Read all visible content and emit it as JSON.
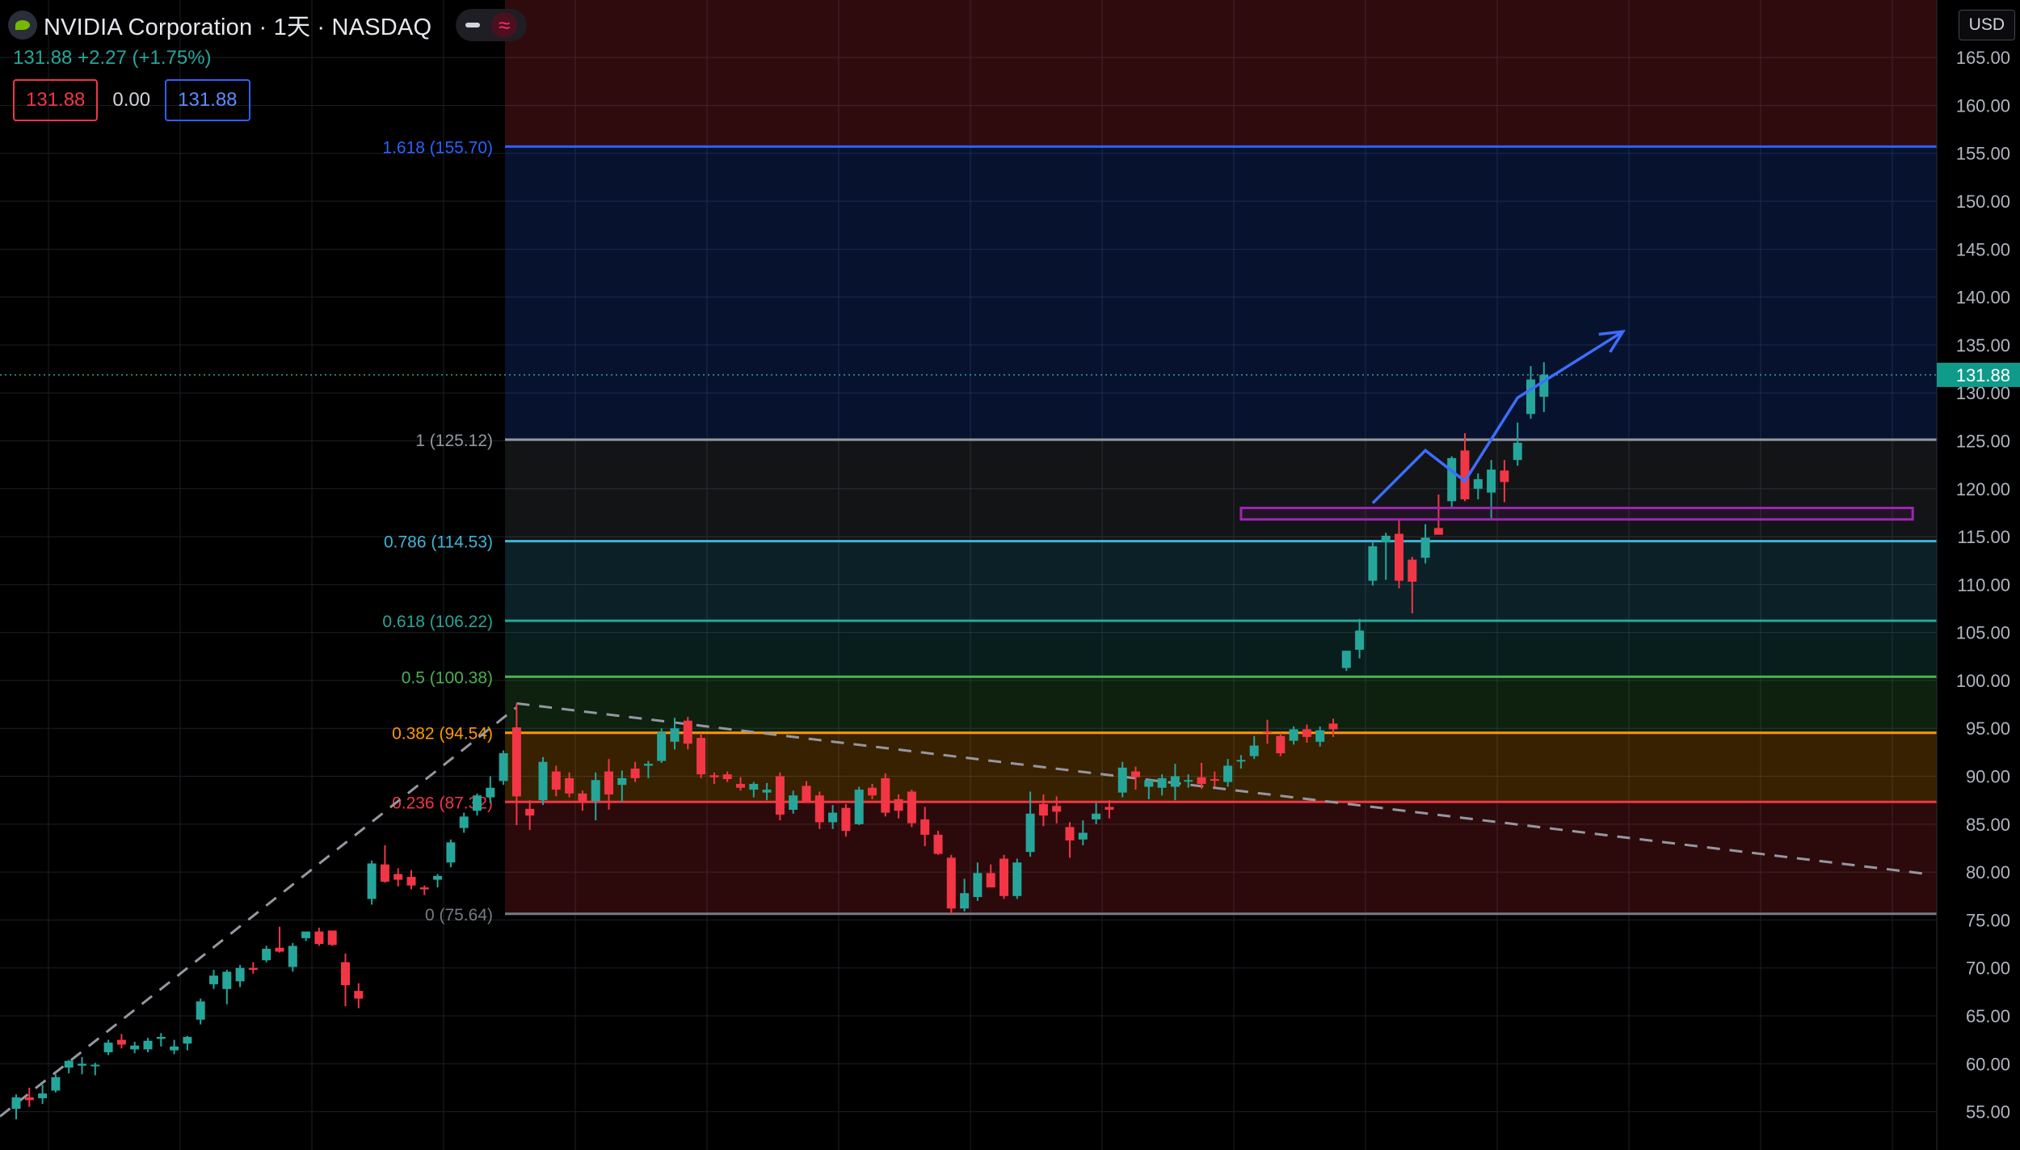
{
  "header": {
    "title": "NVIDIA Corporation · 1天 · NASDAQ",
    "change": "131.88  +2.27 (+1.75%)",
    "bid": "131.88",
    "spread": "0.00",
    "ask": "131.88",
    "currency": "USD"
  },
  "colors": {
    "up": "#26a69a",
    "down": "#f23645",
    "fib_1618": "#2962ff",
    "fib_1": "#9598a1",
    "fib_0786": "#3fb5d6",
    "fib_0618": "#26a69a",
    "fib_05": "#4caf50",
    "fib_0382": "#ff9800",
    "fib_0236": "#f23645",
    "fib_0": "#787b86",
    "rect": "#9c27b0",
    "arrow": "#3d6eff",
    "trend": "#9598a1"
  },
  "chart_data": {
    "type": "candlestick",
    "symbol": "NVDA",
    "interval": "1天",
    "ylim": [
      51,
      171
    ],
    "price_axis_ticks": [
      55,
      60,
      65,
      70,
      75,
      80,
      85,
      90,
      95,
      100,
      105,
      110,
      115,
      120,
      125,
      130,
      135,
      140,
      145,
      150,
      155,
      160,
      165
    ],
    "last_price": 131.88,
    "fib_levels": [
      {
        "ratio": "1.618",
        "price": 155.7,
        "label": "1.618 (155.70)",
        "color": "#2962ff"
      },
      {
        "ratio": "1",
        "price": 125.12,
        "label": "1 (125.12)",
        "color": "#9598a1"
      },
      {
        "ratio": "0.786",
        "price": 114.53,
        "label": "0.786 (114.53)",
        "color": "#3fb5d6"
      },
      {
        "ratio": "0.618",
        "price": 106.22,
        "label": "0.618 (106.22)",
        "color": "#26a69a"
      },
      {
        "ratio": "0.5",
        "price": 100.38,
        "label": "0.5 (100.38)",
        "color": "#4caf50"
      },
      {
        "ratio": "0.382",
        "price": 94.54,
        "label": "0.382 (94.54)",
        "color": "#ff9800"
      },
      {
        "ratio": "0.236",
        "price": 87.32,
        "label": "0.236 (87.32)",
        "color": "#f23645"
      },
      {
        "ratio": "0",
        "price": 75.64,
        "label": "0 (75.64)",
        "color": "#787b86"
      }
    ],
    "support_zone": {
      "low": 116.8,
      "high": 118.0,
      "from_bar": 93,
      "to_bar": 144
    },
    "projection_path": [
      {
        "bar": 103,
        "price": 118.5
      },
      {
        "bar": 107,
        "price": 124.0
      },
      {
        "bar": 110,
        "price": 120.8
      },
      {
        "bar": 114,
        "price": 129.5
      },
      {
        "bar": 122,
        "price": 136.4
      }
    ],
    "candles": [
      {
        "o": 55.3,
        "h": 56.8,
        "l": 54.2,
        "c": 56.5
      },
      {
        "o": 56.5,
        "h": 57.5,
        "l": 55.5,
        "c": 56.2
      },
      {
        "o": 56.4,
        "h": 57.8,
        "l": 55.8,
        "c": 56.9
      },
      {
        "o": 57.2,
        "h": 58.9,
        "l": 57.0,
        "c": 58.6
      },
      {
        "o": 59.6,
        "h": 60.4,
        "l": 59.0,
        "c": 60.3
      },
      {
        "o": 59.8,
        "h": 60.7,
        "l": 58.9,
        "c": 60.0
      },
      {
        "o": 59.8,
        "h": 60.1,
        "l": 58.8,
        "c": 59.9
      },
      {
        "o": 61.2,
        "h": 62.5,
        "l": 60.9,
        "c": 62.2
      },
      {
        "o": 62.5,
        "h": 63.1,
        "l": 61.6,
        "c": 62.0
      },
      {
        "o": 61.5,
        "h": 62.3,
        "l": 61.1,
        "c": 61.9
      },
      {
        "o": 61.5,
        "h": 62.7,
        "l": 61.2,
        "c": 62.4
      },
      {
        "o": 62.6,
        "h": 63.2,
        "l": 61.8,
        "c": 62.8
      },
      {
        "o": 61.4,
        "h": 62.5,
        "l": 61.0,
        "c": 61.8
      },
      {
        "o": 62.1,
        "h": 62.9,
        "l": 61.4,
        "c": 62.8
      },
      {
        "o": 64.6,
        "h": 66.8,
        "l": 64.1,
        "c": 66.5
      },
      {
        "o": 68.3,
        "h": 69.8,
        "l": 67.8,
        "c": 69.2
      },
      {
        "o": 67.8,
        "h": 69.8,
        "l": 66.2,
        "c": 69.6
      },
      {
        "o": 68.6,
        "h": 70.3,
        "l": 68.0,
        "c": 70.0
      },
      {
        "o": 70.0,
        "h": 70.6,
        "l": 69.4,
        "c": 69.8
      },
      {
        "o": 70.8,
        "h": 72.3,
        "l": 70.6,
        "c": 72.0
      },
      {
        "o": 72.1,
        "h": 74.3,
        "l": 71.6,
        "c": 71.7
      },
      {
        "o": 70.1,
        "h": 72.6,
        "l": 69.6,
        "c": 72.3
      },
      {
        "o": 73.1,
        "h": 73.6,
        "l": 72.8,
        "c": 73.8
      },
      {
        "o": 73.8,
        "h": 74.2,
        "l": 72.3,
        "c": 72.5
      },
      {
        "o": 73.9,
        "h": 73.9,
        "l": 72.3,
        "c": 72.4
      },
      {
        "o": 70.6,
        "h": 71.5,
        "l": 66.0,
        "c": 68.2
      },
      {
        "o": 67.6,
        "h": 68.4,
        "l": 65.8,
        "c": 66.8
      },
      {
        "o": 77.2,
        "h": 81.2,
        "l": 76.6,
        "c": 80.9
      },
      {
        "o": 80.8,
        "h": 82.8,
        "l": 78.9,
        "c": 79.0
      },
      {
        "o": 79.8,
        "h": 80.4,
        "l": 78.5,
        "c": 79.2
      },
      {
        "o": 79.5,
        "h": 80.2,
        "l": 78.2,
        "c": 78.6
      },
      {
        "o": 78.4,
        "h": 78.6,
        "l": 77.6,
        "c": 78.2
      },
      {
        "o": 79.2,
        "h": 79.8,
        "l": 78.4,
        "c": 79.6
      },
      {
        "o": 81.0,
        "h": 83.4,
        "l": 80.5,
        "c": 83.1
      },
      {
        "o": 84.6,
        "h": 86.2,
        "l": 84.1,
        "c": 85.8
      },
      {
        "o": 86.4,
        "h": 88.2,
        "l": 85.9,
        "c": 88.0
      },
      {
        "o": 87.8,
        "h": 90.0,
        "l": 87.2,
        "c": 88.8
      },
      {
        "o": 89.5,
        "h": 92.7,
        "l": 89.1,
        "c": 92.4
      },
      {
        "o": 95.1,
        "h": 97.6,
        "l": 84.9,
        "c": 87.9
      },
      {
        "o": 86.6,
        "h": 87.5,
        "l": 84.4,
        "c": 85.9
      },
      {
        "o": 87.5,
        "h": 92.0,
        "l": 87.0,
        "c": 91.5
      },
      {
        "o": 90.5,
        "h": 91.1,
        "l": 87.9,
        "c": 88.6
      },
      {
        "o": 89.8,
        "h": 90.4,
        "l": 87.8,
        "c": 88.2
      },
      {
        "o": 88.2,
        "h": 88.5,
        "l": 86.4,
        "c": 87.4
      },
      {
        "o": 87.4,
        "h": 90.4,
        "l": 85.4,
        "c": 89.6
      },
      {
        "o": 90.5,
        "h": 91.8,
        "l": 86.5,
        "c": 88.1
      },
      {
        "o": 89.1,
        "h": 90.6,
        "l": 87.3,
        "c": 89.8
      },
      {
        "o": 90.8,
        "h": 91.5,
        "l": 89.4,
        "c": 89.8
      },
      {
        "o": 91.1,
        "h": 91.6,
        "l": 89.8,
        "c": 91.3
      },
      {
        "o": 91.6,
        "h": 95.0,
        "l": 91.4,
        "c": 94.6
      },
      {
        "o": 93.6,
        "h": 96.1,
        "l": 92.8,
        "c": 95.0
      },
      {
        "o": 95.8,
        "h": 96.2,
        "l": 92.8,
        "c": 93.4
      },
      {
        "o": 94.0,
        "h": 94.5,
        "l": 89.8,
        "c": 90.2
      },
      {
        "o": 90.1,
        "h": 90.4,
        "l": 89.2,
        "c": 89.9
      },
      {
        "o": 90.2,
        "h": 90.5,
        "l": 89.4,
        "c": 89.7
      },
      {
        "o": 89.2,
        "h": 89.9,
        "l": 88.5,
        "c": 88.8
      },
      {
        "o": 88.6,
        "h": 89.4,
        "l": 87.8,
        "c": 89.2
      },
      {
        "o": 88.3,
        "h": 89.3,
        "l": 87.5,
        "c": 88.6
      },
      {
        "o": 90.0,
        "h": 90.4,
        "l": 85.4,
        "c": 86.0
      },
      {
        "o": 86.5,
        "h": 88.5,
        "l": 86.1,
        "c": 88.0
      },
      {
        "o": 89.0,
        "h": 89.5,
        "l": 87.4,
        "c": 87.4
      },
      {
        "o": 88.0,
        "h": 88.4,
        "l": 84.5,
        "c": 85.2
      },
      {
        "o": 85.2,
        "h": 87.0,
        "l": 84.5,
        "c": 86.2
      },
      {
        "o": 86.7,
        "h": 87.1,
        "l": 83.7,
        "c": 84.3
      },
      {
        "o": 85.0,
        "h": 88.9,
        "l": 84.9,
        "c": 88.6
      },
      {
        "o": 88.8,
        "h": 89.2,
        "l": 87.6,
        "c": 88.0
      },
      {
        "o": 89.8,
        "h": 90.3,
        "l": 85.8,
        "c": 86.2
      },
      {
        "o": 87.6,
        "h": 88.1,
        "l": 85.6,
        "c": 86.4
      },
      {
        "o": 88.4,
        "h": 88.6,
        "l": 84.7,
        "c": 85.1
      },
      {
        "o": 85.5,
        "h": 86.8,
        "l": 82.7,
        "c": 83.9
      },
      {
        "o": 83.9,
        "h": 84.3,
        "l": 81.8,
        "c": 81.9
      },
      {
        "o": 81.5,
        "h": 81.8,
        "l": 75.6,
        "c": 76.2
      },
      {
        "o": 76.2,
        "h": 79.3,
        "l": 75.9,
        "c": 77.8
      },
      {
        "o": 77.4,
        "h": 81.0,
        "l": 77.0,
        "c": 79.9
      },
      {
        "o": 79.9,
        "h": 80.8,
        "l": 79.0,
        "c": 78.4
      },
      {
        "o": 81.4,
        "h": 81.8,
        "l": 77.2,
        "c": 77.5
      },
      {
        "o": 77.5,
        "h": 81.4,
        "l": 77.2,
        "c": 81.0
      },
      {
        "o": 82.1,
        "h": 88.4,
        "l": 81.6,
        "c": 86.1
      },
      {
        "o": 87.1,
        "h": 88.1,
        "l": 84.8,
        "c": 85.9
      },
      {
        "o": 86.9,
        "h": 87.9,
        "l": 85.1,
        "c": 86.3
      },
      {
        "o": 84.7,
        "h": 85.2,
        "l": 81.5,
        "c": 83.3
      },
      {
        "o": 83.4,
        "h": 85.4,
        "l": 82.8,
        "c": 84.1
      },
      {
        "o": 85.5,
        "h": 87.2,
        "l": 85.0,
        "c": 86.1
      },
      {
        "o": 86.8,
        "h": 87.5,
        "l": 85.6,
        "c": 86.5
      },
      {
        "o": 88.3,
        "h": 91.5,
        "l": 87.8,
        "c": 90.9
      },
      {
        "o": 90.5,
        "h": 91.0,
        "l": 88.6,
        "c": 89.9
      },
      {
        "o": 88.9,
        "h": 89.6,
        "l": 87.6,
        "c": 89.6
      },
      {
        "o": 88.8,
        "h": 90.2,
        "l": 88.0,
        "c": 89.8
      },
      {
        "o": 88.9,
        "h": 91.3,
        "l": 87.5,
        "c": 90.0
      },
      {
        "o": 89.5,
        "h": 90.2,
        "l": 88.8,
        "c": 89.6
      },
      {
        "o": 89.9,
        "h": 91.4,
        "l": 88.7,
        "c": 89.2
      },
      {
        "o": 89.7,
        "h": 90.5,
        "l": 88.9,
        "c": 89.6
      },
      {
        "o": 89.4,
        "h": 91.8,
        "l": 88.9,
        "c": 91.1
      },
      {
        "o": 91.6,
        "h": 92.2,
        "l": 90.8,
        "c": 91.7
      },
      {
        "o": 92.1,
        "h": 94.2,
        "l": 91.8,
        "c": 93.2
      },
      {
        "o": 94.7,
        "h": 95.9,
        "l": 93.4,
        "c": 94.6
      },
      {
        "o": 94.2,
        "h": 94.5,
        "l": 92.1,
        "c": 92.4
      },
      {
        "o": 93.7,
        "h": 95.2,
        "l": 93.3,
        "c": 94.9
      },
      {
        "o": 94.9,
        "h": 95.4,
        "l": 93.5,
        "c": 94.1
      },
      {
        "o": 93.6,
        "h": 95.2,
        "l": 93.1,
        "c": 94.8
      },
      {
        "o": 95.5,
        "h": 96.0,
        "l": 94.1,
        "c": 94.9
      },
      {
        "o": 101.3,
        "h": 102.9,
        "l": 101.0,
        "c": 103.1
      },
      {
        "o": 103.2,
        "h": 106.4,
        "l": 102.3,
        "c": 105.2
      },
      {
        "o": 110.4,
        "h": 114.4,
        "l": 109.9,
        "c": 114.0
      },
      {
        "o": 114.4,
        "h": 115.4,
        "l": 110.5,
        "c": 115.1
      },
      {
        "o": 115.3,
        "h": 116.8,
        "l": 109.6,
        "c": 110.4
      },
      {
        "o": 112.6,
        "h": 112.9,
        "l": 107.0,
        "c": 110.3
      },
      {
        "o": 112.8,
        "h": 116.3,
        "l": 112.2,
        "c": 114.9
      },
      {
        "o": 115.9,
        "h": 119.4,
        "l": 115.3,
        "c": 115.2
      },
      {
        "o": 118.7,
        "h": 123.4,
        "l": 117.9,
        "c": 123.2
      },
      {
        "o": 124.0,
        "h": 125.8,
        "l": 118.7,
        "c": 118.9
      },
      {
        "o": 120.0,
        "h": 121.6,
        "l": 118.9,
        "c": 121.0
      },
      {
        "o": 119.6,
        "h": 123.0,
        "l": 116.8,
        "c": 122.0
      },
      {
        "o": 121.9,
        "h": 123.0,
        "l": 118.6,
        "c": 120.7
      },
      {
        "o": 123.0,
        "h": 126.9,
        "l": 122.4,
        "c": 124.8
      },
      {
        "o": 127.8,
        "h": 132.8,
        "l": 127.3,
        "c": 131.4
      },
      {
        "o": 129.6,
        "h": 133.2,
        "l": 128.0,
        "c": 131.9
      }
    ]
  }
}
